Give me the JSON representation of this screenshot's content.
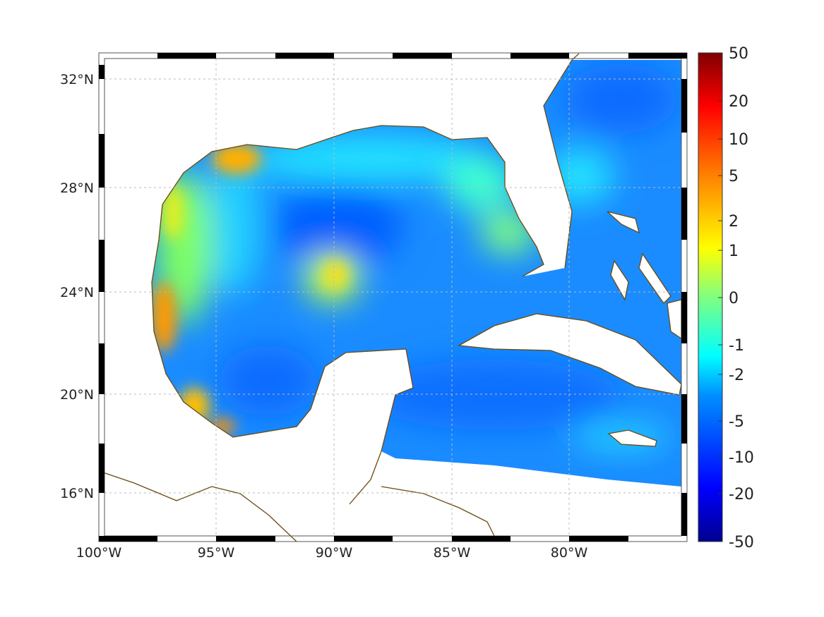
{
  "map": {
    "region": "Gulf of Mexico and Caribbean",
    "x_ticks": [
      "100°W",
      "95°W",
      "90°W",
      "85°W",
      "80°W"
    ],
    "y_ticks": [
      "32°N",
      "28°N",
      "24°N",
      "20°N",
      "16°N"
    ],
    "coastline_color": "#6b4a10",
    "grid": true
  },
  "colorbar": {
    "colormap": "jet",
    "ticks": [
      "50",
      "20",
      "10",
      "5",
      "2",
      "1",
      "0",
      "-1",
      "-2",
      "-5",
      "-10",
      "-20",
      "-50"
    ]
  }
}
